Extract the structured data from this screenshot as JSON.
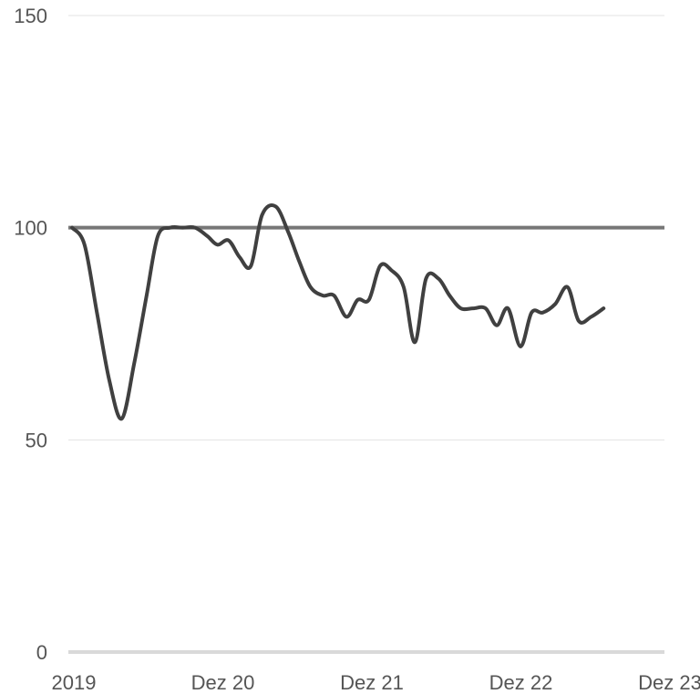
{
  "chart_data": {
    "type": "line",
    "title": "",
    "xlabel": "",
    "ylabel": "",
    "ylim": [
      0,
      150
    ],
    "yticks": [
      {
        "value": 0,
        "label": "0"
      },
      {
        "value": 50,
        "label": "50"
      },
      {
        "value": 100,
        "label": "100"
      },
      {
        "value": 150,
        "label": "150"
      }
    ],
    "xticks": [
      {
        "value": 0,
        "label": "2019"
      },
      {
        "value": 12,
        "label": "Dez 20"
      },
      {
        "value": 24,
        "label": "Dez 21"
      },
      {
        "value": 36,
        "label": "Dez 22"
      },
      {
        "value": 48,
        "label": "Dez 23"
      }
    ],
    "xlim": [
      0,
      48
    ],
    "grid": true,
    "legend": "none",
    "reference_line": {
      "value": 100,
      "color": "#777777"
    },
    "series": [
      {
        "color": "#404040",
        "points": [
          [
            0.3,
            100
          ],
          [
            1.3,
            96
          ],
          [
            2.3,
            80
          ],
          [
            3.3,
            64
          ],
          [
            4.3,
            55
          ],
          [
            5.3,
            68
          ],
          [
            6.3,
            84
          ],
          [
            7.2,
            98
          ],
          [
            8.2,
            100
          ],
          [
            9.2,
            100
          ],
          [
            10.2,
            100
          ],
          [
            11.2,
            98
          ],
          [
            12.0,
            96
          ],
          [
            12.9,
            97
          ],
          [
            13.8,
            93
          ],
          [
            14.7,
            91
          ],
          [
            15.6,
            103
          ],
          [
            16.7,
            105
          ],
          [
            17.7,
            99
          ],
          [
            18.6,
            92
          ],
          [
            19.5,
            86
          ],
          [
            20.5,
            84
          ],
          [
            21.4,
            84
          ],
          [
            22.4,
            79
          ],
          [
            23.3,
            83
          ],
          [
            24.2,
            83
          ],
          [
            25.1,
            91
          ],
          [
            26.0,
            90
          ],
          [
            27.0,
            86
          ],
          [
            27.9,
            73
          ],
          [
            28.8,
            88
          ],
          [
            29.8,
            88
          ],
          [
            30.7,
            84
          ],
          [
            31.6,
            81
          ],
          [
            32.6,
            81
          ],
          [
            33.6,
            81
          ],
          [
            34.5,
            77
          ],
          [
            35.4,
            81
          ],
          [
            36.4,
            72
          ],
          [
            37.3,
            80
          ],
          [
            38.2,
            80
          ],
          [
            39.2,
            82
          ],
          [
            40.2,
            86
          ],
          [
            41.1,
            78
          ],
          [
            42.1,
            79
          ],
          [
            43.1,
            81
          ]
        ]
      }
    ]
  }
}
